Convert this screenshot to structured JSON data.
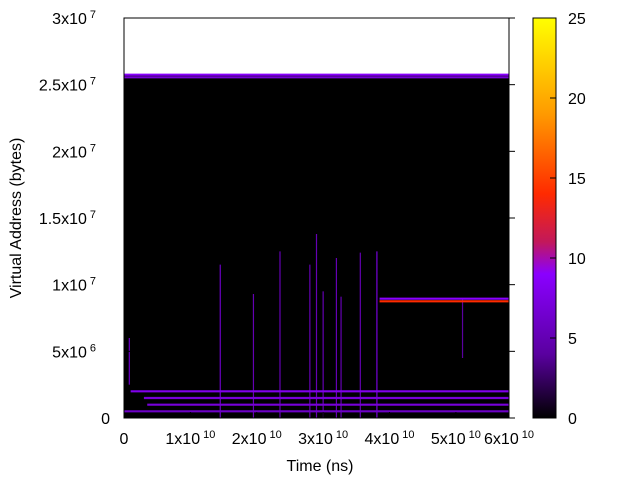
{
  "chart_data": {
    "type": "heatmap",
    "title": "",
    "xlabel": "Time (ns)",
    "ylabel": "Virtual Address (bytes)",
    "xlim": [
      0,
      58000000000
    ],
    "ylim": [
      0,
      30000000
    ],
    "x_ticks": [
      {
        "value": 0,
        "mant": "0",
        "exp": ""
      },
      {
        "value": 10000000000,
        "mant": "1x10",
        "exp": "10"
      },
      {
        "value": 20000000000,
        "mant": "2x10",
        "exp": "10"
      },
      {
        "value": 30000000000,
        "mant": "3x10",
        "exp": "10"
      },
      {
        "value": 40000000000,
        "mant": "4x10",
        "exp": "10"
      },
      {
        "value": 50000000000,
        "mant": "5x10",
        "exp": "10"
      },
      {
        "value": 60000000000,
        "mant": "6x10",
        "exp": "10"
      }
    ],
    "y_ticks": [
      {
        "value": 0,
        "mant": "0",
        "exp": ""
      },
      {
        "value": 5000000,
        "mant": "5x10",
        "exp": "6"
      },
      {
        "value": 10000000,
        "mant": "1x10",
        "exp": "7"
      },
      {
        "value": 15000000,
        "mant": "1.5x10",
        "exp": "7"
      },
      {
        "value": 20000000,
        "mant": "2x10",
        "exp": "7"
      },
      {
        "value": 25000000,
        "mant": "2.5x10",
        "exp": "7"
      },
      {
        "value": 30000000,
        "mant": "3x10",
        "exp": "7"
      }
    ],
    "colorbar": {
      "range": [
        0,
        25
      ],
      "ticks": [
        0,
        5,
        10,
        15,
        20,
        25
      ],
      "palette": [
        "#000000",
        "#5a00a0",
        "#8a00ff",
        "#c2185b",
        "#ff2a00",
        "#ff9a00",
        "#ffff00"
      ]
    },
    "region": {
      "x": [
        0,
        58000000000
      ],
      "y": [
        0,
        25800000
      ],
      "value": 0
    },
    "horizontal_bands": [
      {
        "y": 25750000,
        "x_start": 0,
        "x_end": 58000000000,
        "value": 9
      },
      {
        "y": 25550000,
        "x_start": 0,
        "x_end": 58000000000,
        "value": 7
      },
      {
        "y": 8950000,
        "x_start": 38500000000,
        "x_end": 58000000000,
        "value": 9
      },
      {
        "y": 8750000,
        "x_start": 38500000000,
        "x_end": 58000000000,
        "value": 14
      },
      {
        "y": 2000000,
        "x_start": 1000000000,
        "x_end": 58000000000,
        "value": 8
      },
      {
        "y": 1500000,
        "x_start": 3000000000,
        "x_end": 58000000000,
        "value": 7
      },
      {
        "y": 1000000,
        "x_start": 3500000000,
        "x_end": 58000000000,
        "value": 7
      },
      {
        "y": 500000,
        "x_start": 0,
        "x_end": 58000000000,
        "value": 6
      }
    ],
    "vertical_spikes": [
      {
        "x": 800000000,
        "y_min": 2500000,
        "y_max": 6000000,
        "value": 6
      },
      {
        "x": 14500000000,
        "y_min": 0,
        "y_max": 11500000,
        "value": 6
      },
      {
        "x": 19500000000,
        "y_min": 0,
        "y_max": 9300000,
        "value": 5
      },
      {
        "x": 23500000000,
        "y_min": 0,
        "y_max": 12500000,
        "value": 5
      },
      {
        "x": 28000000000,
        "y_min": 0,
        "y_max": 11500000,
        "value": 5
      },
      {
        "x": 29000000000,
        "y_min": 0,
        "y_max": 13800000,
        "value": 5
      },
      {
        "x": 30000000000,
        "y_min": 0,
        "y_max": 9500000,
        "value": 5
      },
      {
        "x": 32000000000,
        "y_min": 0,
        "y_max": 12000000,
        "value": 5
      },
      {
        "x": 32700000000,
        "y_min": 0,
        "y_max": 9100000,
        "value": 5
      },
      {
        "x": 35600000000,
        "y_min": 0,
        "y_max": 12400000,
        "value": 5
      },
      {
        "x": 38100000000,
        "y_min": 0,
        "y_max": 12500000,
        "value": 7
      },
      {
        "x": 51000000000,
        "y_min": 4500000,
        "y_max": 8900000,
        "value": 4
      }
    ]
  }
}
